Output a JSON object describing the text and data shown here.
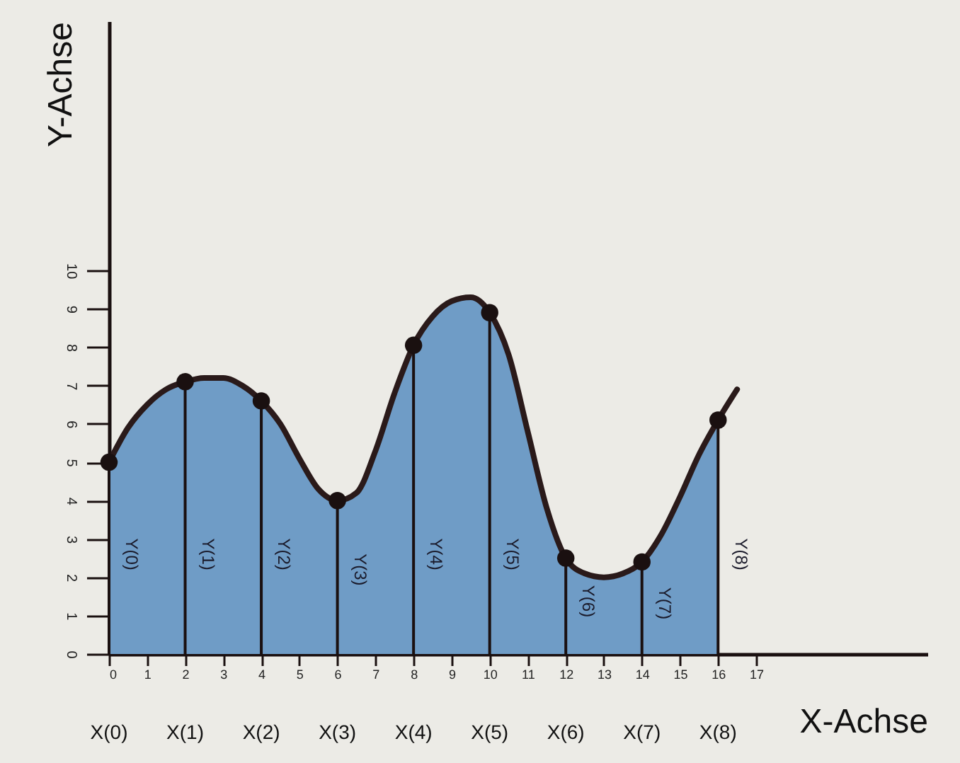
{
  "chart_data": {
    "type": "area",
    "xlabel": "X-Achse",
    "ylabel": "Y-Achse",
    "xlim": [
      0,
      21.5
    ],
    "ylim": [
      0,
      16.5
    ],
    "xticks": [
      0,
      1,
      2,
      3,
      4,
      5,
      6,
      7,
      8,
      9,
      10,
      11,
      12,
      13,
      14,
      15,
      16,
      17
    ],
    "yticks": [
      0,
      1,
      2,
      3,
      4,
      5,
      6,
      7,
      8,
      9,
      10
    ],
    "series": [
      {
        "color": "#6f9cc6",
        "x": [
          0,
          0.5,
          1,
          1.5,
          2,
          2.5,
          3,
          3.5,
          4,
          4.5,
          5,
          5.5,
          6,
          6.5,
          7,
          7.5,
          8,
          8.5,
          9,
          9.5,
          10,
          10.5,
          11,
          11.5,
          12,
          12.5,
          13,
          13.5,
          14,
          14.5,
          15,
          15.5,
          16
        ],
        "values": [
          5,
          5.9,
          6.5,
          6.9,
          7.1,
          7.2,
          7.2,
          7.0,
          6.6,
          6.0,
          5.1,
          4.3,
          4.0,
          4.2,
          5.3,
          6.8,
          8.05,
          8.8,
          9.2,
          9.3,
          8.9,
          7.8,
          5.8,
          3.8,
          2.5,
          2.1,
          2.0,
          2.1,
          2.4,
          3.1,
          4.1,
          5.2,
          6.1
        ]
      },
      {
        "type": "line",
        "color": "#2a1a1a",
        "line_style": "solid",
        "x": [
          0,
          0.5,
          1,
          1.5,
          2,
          2.5,
          3,
          3.5,
          4,
          4.5,
          5,
          5.5,
          6,
          6.5,
          7,
          7.5,
          8,
          8.5,
          9,
          9.5,
          10,
          10.5,
          11,
          11.5,
          12,
          12.5,
          13,
          13.5,
          14,
          14.5,
          15,
          15.5,
          16,
          16.5
        ],
        "values": [
          5,
          5.9,
          6.5,
          6.9,
          7.1,
          7.2,
          7.2,
          7.0,
          6.6,
          6.0,
          5.1,
          4.3,
          4.0,
          4.2,
          5.3,
          6.8,
          8.05,
          8.8,
          9.2,
          9.3,
          8.9,
          7.8,
          5.8,
          3.8,
          2.5,
          2.1,
          2.0,
          2.1,
          2.4,
          3.1,
          4.1,
          5.2,
          6.1,
          6.9
        ]
      },
      {
        "type": "lollipop",
        "color": "#1a1010",
        "marker": "circle",
        "x": [
          0,
          2,
          4,
          6,
          8,
          10,
          12,
          14,
          16
        ],
        "values": [
          5,
          7.1,
          6.6,
          4,
          8.05,
          8.9,
          2.5,
          2.4,
          6.1
        ]
      }
    ],
    "annotations": [
      "Y(0)",
      "Y(1)",
      "Y(2)",
      "Y(3)",
      "Y(4)",
      "Y(5)",
      "Y(6)",
      "Y(7)",
      "Y(8)",
      "X(0)",
      "X(1)",
      "X(2)",
      "X(3)",
      "X(4)",
      "X(5)",
      "X(6)",
      "X(7)",
      "X(8)"
    ]
  }
}
